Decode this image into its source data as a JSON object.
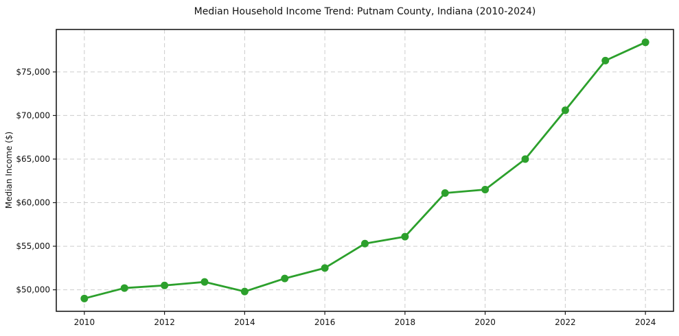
{
  "chart_data": {
    "type": "line",
    "title": "Median Household Income Trend: Putnam County, Indiana (2010-2024)",
    "xlabel": "",
    "ylabel": "Median Income ($)",
    "x": [
      2010,
      2011,
      2012,
      2013,
      2014,
      2015,
      2016,
      2017,
      2018,
      2019,
      2020,
      2021,
      2022,
      2023,
      2024
    ],
    "values": [
      49000,
      50200,
      50500,
      50900,
      49800,
      51300,
      52500,
      55300,
      56100,
      61100,
      61500,
      65000,
      70600,
      76300,
      78400
    ],
    "series_name": "Median Household Income",
    "xticks": [
      2010,
      2012,
      2014,
      2016,
      2018,
      2020,
      2022,
      2024
    ],
    "yticks": [
      {
        "value": 50000,
        "label": "$50,000"
      },
      {
        "value": 55000,
        "label": "$55,000"
      },
      {
        "value": 60000,
        "label": "$60,000"
      },
      {
        "value": 65000,
        "label": "$65,000"
      },
      {
        "value": 70000,
        "label": "$70,000"
      },
      {
        "value": 75000,
        "label": "$75,000"
      }
    ],
    "xlim": [
      2009.3,
      2024.7
    ],
    "ylim": [
      47530,
      79870
    ],
    "grid": "dashed",
    "legend": "none",
    "colors": {
      "line": "#2ca02c",
      "marker": "#2ca02c",
      "grid": "#cccccc",
      "spine": "#1a1a1a",
      "tick": "#1a1a1a",
      "background": "#ffffff"
    }
  }
}
